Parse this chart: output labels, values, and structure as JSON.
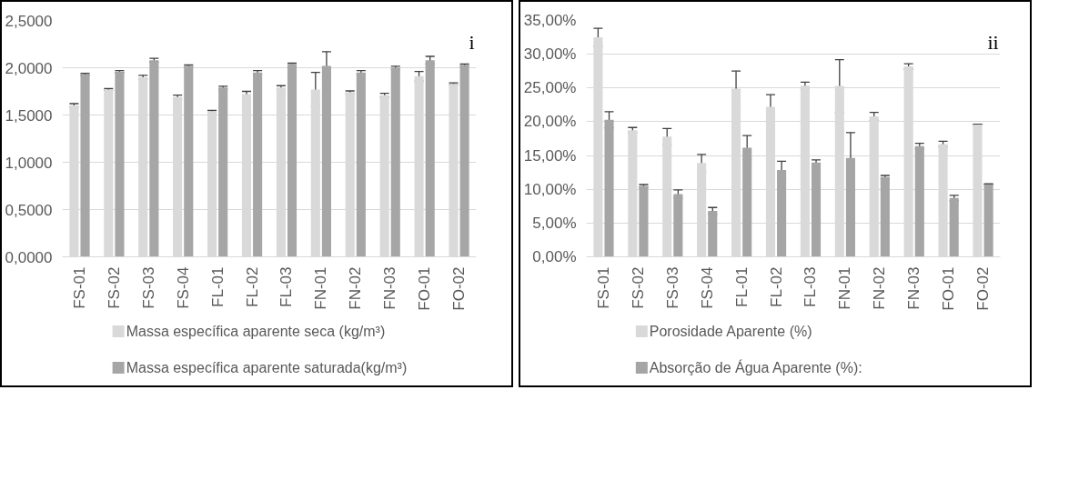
{
  "chart_data": [
    {
      "type": "bar",
      "categories": [
        "FS-01",
        "FS-02",
        "FS-03",
        "FS-04",
        "FL-01",
        "FL-02",
        "FL-03",
        "FN-01",
        "FN-02",
        "FN-03",
        "FO-01",
        "FO-02"
      ],
      "ylim": [
        0,
        2.5
      ],
      "yticks": [
        {
          "value": 0,
          "label": "0,0000"
        },
        {
          "value": 0.5,
          "label": "0,5000"
        },
        {
          "value": 1,
          "label": "1,0000"
        },
        {
          "value": 1.5,
          "label": "1,5000"
        },
        {
          "value": 2,
          "label": "2,0000"
        },
        {
          "value": 2.5,
          "label": "2,5000"
        }
      ],
      "grid": "y",
      "legend": "bottom",
      "annotations": [
        "i"
      ],
      "series": [
        {
          "name": "Massa específica aparente seca (kg/m³)",
          "color": "#d9d9d9",
          "values": [
            1.6,
            1.77,
            1.9,
            1.69,
            1.54,
            1.72,
            1.79,
            1.77,
            1.74,
            1.71,
            1.91,
            1.83
          ],
          "errors": [
            0.02,
            0.01,
            0.02,
            0.02,
            0.01,
            0.03,
            0.02,
            0.18,
            0.015,
            0.02,
            0.05,
            0.01
          ]
        },
        {
          "name": "Massa específica aparente saturada(kg/m³)",
          "color": "#a6a6a6",
          "values": [
            1.93,
            1.96,
            2.08,
            2.02,
            1.79,
            1.95,
            2.04,
            2.02,
            1.95,
            2.0,
            2.08,
            2.03
          ],
          "errors": [
            0.01,
            0.01,
            0.02,
            0.01,
            0.015,
            0.02,
            0.01,
            0.15,
            0.02,
            0.015,
            0.04,
            0.01
          ]
        }
      ]
    },
    {
      "type": "bar",
      "categories": [
        "FS-01",
        "FS-02",
        "FS-03",
        "FS-04",
        "FL-01",
        "FL-02",
        "FL-03",
        "FN-01",
        "FN-02",
        "FN-03",
        "FO-01",
        "FO-02"
      ],
      "ylim": [
        0,
        35
      ],
      "yticks": [
        {
          "value": 0,
          "label": "0,00%"
        },
        {
          "value": 5,
          "label": "5,00%"
        },
        {
          "value": 10,
          "label": "10,00%"
        },
        {
          "value": 15,
          "label": "15,00%"
        },
        {
          "value": 20,
          "label": "20,00%"
        },
        {
          "value": 25,
          "label": "25,00%"
        },
        {
          "value": 30,
          "label": "30,00%"
        },
        {
          "value": 35,
          "label": "35,00%"
        }
      ],
      "grid": "y",
      "legend": "bottom",
      "annotations": [
        "ii"
      ],
      "series": [
        {
          "name": "Porosidade Aparente (%)",
          "color": "#d9d9d9",
          "values": [
            32.5,
            18.75,
            17.8,
            13.9,
            24.9,
            22.2,
            25.35,
            25.3,
            20.8,
            28.2,
            16.7,
            19.6
          ],
          "errors": [
            1.35,
            0.4,
            1.2,
            1.25,
            2.6,
            1.8,
            0.5,
            3.9,
            0.6,
            0.4,
            0.4,
            0.05
          ]
        },
        {
          "name": "Absorção de Água Aparente (%):",
          "color": "#a5a5a5",
          "values": [
            20.3,
            10.5,
            9.3,
            6.8,
            16.15,
            12.85,
            13.95,
            14.65,
            11.8,
            16.4,
            8.7,
            10.75
          ],
          "errors": [
            1.2,
            0.2,
            0.6,
            0.5,
            1.8,
            1.3,
            0.4,
            3.75,
            0.25,
            0.4,
            0.4,
            0.05
          ]
        }
      ]
    }
  ]
}
